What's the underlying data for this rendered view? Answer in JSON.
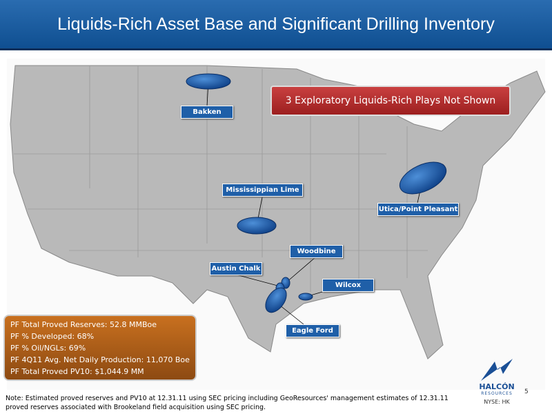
{
  "header": {
    "title": "Liquids-Rich Asset Base and Significant Drilling Inventory"
  },
  "banner": "3 Exploratory Liquids-Rich Plays Not Shown",
  "plays": [
    {
      "label": "Bakken"
    },
    {
      "label": "Mississippian Lime"
    },
    {
      "label": "Utica/Point Pleasant"
    },
    {
      "label": "Woodbine"
    },
    {
      "label": "Austin Chalk"
    },
    {
      "label": "Wilcox"
    },
    {
      "label": "Eagle Ford"
    }
  ],
  "stats": [
    "PF Total Proved Reserves: 52.8 MMBoe",
    "PF % Developed: 68%",
    "PF % Oil/NGLs: 69%",
    "PF 4Q11 Avg. Net Daily Production: 11,070 Boe",
    "PF Total Proved PV10: $1,044.9 MM"
  ],
  "note": "Note: Estimated proved reserves and PV10 at 12.31.11 using SEC pricing including GeoResources' management estimates of 12.31.11 proved reserves associated with Brookeland field acquisition using SEC pricing.",
  "logo": {
    "name": "HALCÓN",
    "sub": "RESOURCES",
    "ticker": "NYSE: HK"
  },
  "page_number": "5"
}
